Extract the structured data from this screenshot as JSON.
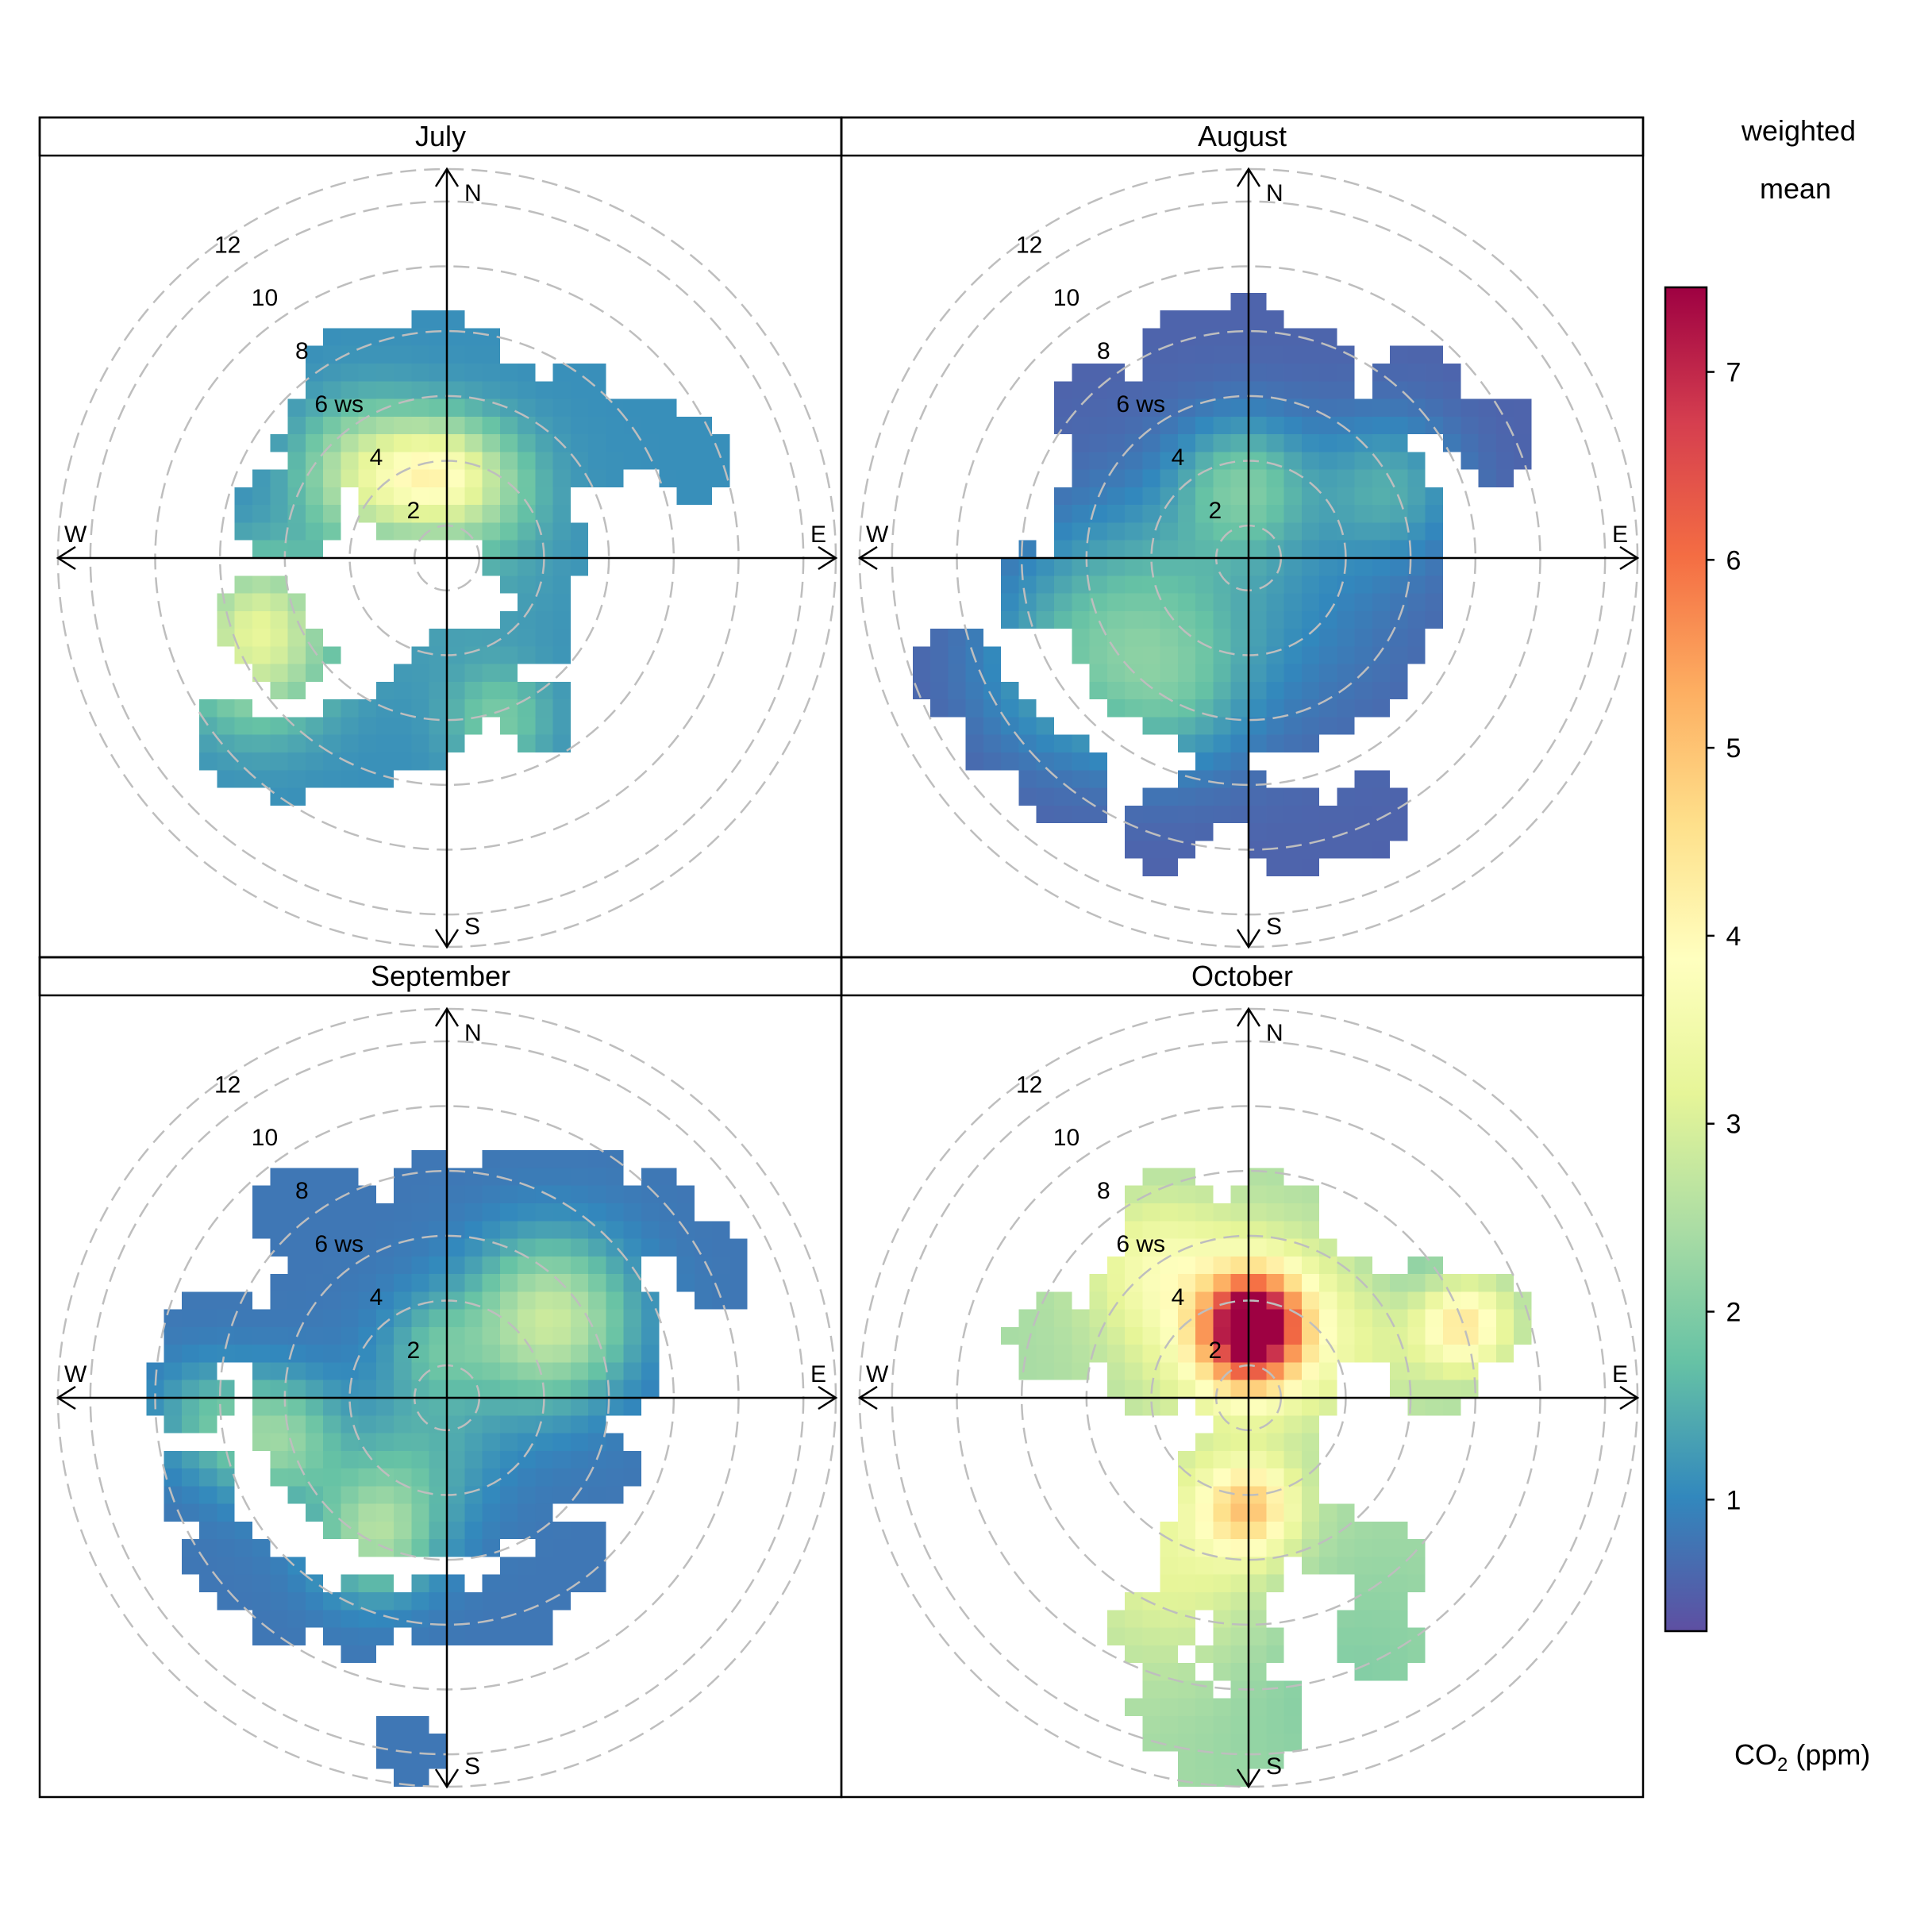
{
  "chart_data": {
    "type": "heatmap",
    "subtype": "polar-plot",
    "layout": "2x2",
    "radial_scale": {
      "label": "ws",
      "ticks": [
        2,
        4,
        6,
        8,
        10,
        12
      ],
      "rmax": 12
    },
    "compass": [
      "N",
      "E",
      "S",
      "W"
    ],
    "colorkey": {
      "title_lines": [
        "weighted",
        "mean"
      ],
      "variable_label": "CO",
      "variable_subscript": "2",
      "variable_unit": " (ppm)",
      "ticks": [
        1,
        2,
        3,
        4,
        5,
        6,
        7
      ],
      "min": 0.3,
      "max": 7.45,
      "palette": [
        "#5E4FA2",
        "#3288BD",
        "#66C2A5",
        "#ABDDA4",
        "#E6F598",
        "#FFFFBF",
        "#FEE08B",
        "#FDAE61",
        "#F46D43",
        "#D53E4F",
        "#9E0142"
      ]
    },
    "panels": [
      {
        "name": "July",
        "background": 1.1,
        "coverage_blobs": [
          {
            "u": -0.5,
            "v": 3.0,
            "r": 2.6
          },
          {
            "u": -0.2,
            "v": 5.2,
            "r": 2.3
          },
          {
            "u": -1.6,
            "v": 5.8,
            "r": 1.4
          },
          {
            "u": -3.2,
            "v": 5.8,
            "r": 1.3
          },
          {
            "u": -3.6,
            "v": 3.6,
            "r": 1.6
          },
          {
            "u": -4.8,
            "v": 1.4,
            "r": 1.6
          },
          {
            "u": -5.8,
            "v": -1.8,
            "r": 1.3
          },
          {
            "u": -4.8,
            "v": -3.0,
            "r": 1.3
          },
          {
            "u": -6.6,
            "v": -5.6,
            "r": 1.3
          },
          {
            "u": -5.0,
            "v": -6.2,
            "r": 1.3
          },
          {
            "u": -3.0,
            "v": -5.8,
            "r": 1.5
          },
          {
            "u": -1.0,
            "v": -5.0,
            "r": 1.5
          },
          {
            "u": 0.5,
            "v": -3.8,
            "r": 1.6
          },
          {
            "u": 2.8,
            "v": -4.8,
            "r": 1.2
          },
          {
            "u": 2.8,
            "v": -2.2,
            "r": 1.2
          },
          {
            "u": 2.8,
            "v": 0.2,
            "r": 1.6
          },
          {
            "u": 2.4,
            "v": 3.0,
            "r": 1.6
          },
          {
            "u": 4.2,
            "v": 3.6,
            "r": 1.6
          },
          {
            "u": 6.0,
            "v": 3.8,
            "r": 1.2
          },
          {
            "u": 7.6,
            "v": 3.0,
            "r": 1.2
          },
          {
            "u": 4.0,
            "v": 4.8,
            "r": 1.2
          },
          {
            "u": 1.8,
            "v": 4.8,
            "r": 1.3
          }
        ],
        "hotspots": [
          {
            "u": -2.4,
            "v": 2.6,
            "r": 1.4,
            "w": 1.8
          },
          {
            "u": -0.4,
            "v": 2.6,
            "r": 1.1,
            "w": 1.7
          },
          {
            "u": 1.0,
            "v": 2.3,
            "r": 1.3,
            "w": 1.0
          },
          {
            "u": -5.8,
            "v": -3.1,
            "r": 1.6,
            "w": 1.4
          },
          {
            "u": -5.8,
            "v": -1.6,
            "r": 1.3,
            "w": 1.0
          },
          {
            "u": 1.6,
            "v": -5.0,
            "r": 1.1,
            "w": 0.8
          },
          {
            "u": 0.0,
            "v": 0.0,
            "r": 2.5,
            "w": 0.3
          }
        ]
      },
      {
        "name": "August",
        "background": 0.55,
        "coverage_blobs": [
          {
            "u": 0.0,
            "v": 0.0,
            "r": 6.2
          },
          {
            "u": -4.6,
            "v": 4.6,
            "r": 1.5
          },
          {
            "u": -1.8,
            "v": 6.2,
            "r": 1.5
          },
          {
            "u": 0.0,
            "v": 6.4,
            "r": 1.6
          },
          {
            "u": 2.0,
            "v": 5.6,
            "r": 1.5
          },
          {
            "u": 5.2,
            "v": 5.0,
            "r": 1.4
          },
          {
            "u": 7.6,
            "v": 3.8,
            "r": 1.4
          },
          {
            "u": -6.6,
            "v": -1.0,
            "r": 1.3
          },
          {
            "u": -9.0,
            "v": -3.6,
            "r": 1.5
          },
          {
            "u": -7.6,
            "v": -5.4,
            "r": 1.4
          },
          {
            "u": -5.6,
            "v": -7.0,
            "r": 1.4
          },
          {
            "u": -2.6,
            "v": -8.4,
            "r": 1.3
          },
          {
            "u": 1.4,
            "v": -8.4,
            "r": 1.3
          },
          {
            "u": 3.6,
            "v": -8.0,
            "r": 1.3
          },
          {
            "u": -0.8,
            "v": -7.0,
            "r": 1.2
          }
        ],
        "hotspots": [
          {
            "u": -3.8,
            "v": -1.8,
            "r": 2.4,
            "w": 0.9
          },
          {
            "u": -2.4,
            "v": -4.2,
            "r": 1.7,
            "w": 0.7
          },
          {
            "u": -6.0,
            "v": -3.6,
            "r": 1.9,
            "w": 0.5
          },
          {
            "u": -0.2,
            "v": 2.3,
            "r": 1.4,
            "w": 1.1
          },
          {
            "u": 4.4,
            "v": 2.2,
            "r": 1.5,
            "w": 0.8
          },
          {
            "u": 0.6,
            "v": -0.8,
            "r": 3.0,
            "w": 0.5
          }
        ]
      },
      {
        "name": "September",
        "background": 0.8,
        "coverage_blobs": [
          {
            "u": -0.6,
            "v": 0.6,
            "r": 5.6
          },
          {
            "u": 2.6,
            "v": 2.4,
            "r": 3.8
          },
          {
            "u": -4.8,
            "v": 5.8,
            "r": 1.3
          },
          {
            "u": -3.2,
            "v": 5.6,
            "r": 1.3
          },
          {
            "u": -0.6,
            "v": 6.2,
            "r": 1.3
          },
          {
            "u": 2.0,
            "v": 6.6,
            "r": 1.3
          },
          {
            "u": 4.2,
            "v": 6.6,
            "r": 1.3
          },
          {
            "u": 6.4,
            "v": 5.6,
            "r": 1.3
          },
          {
            "u": 8.2,
            "v": 4.0,
            "r": 1.3
          },
          {
            "u": 4.8,
            "v": 1.4,
            "r": 2.0
          },
          {
            "u": -7.2,
            "v": 2.2,
            "r": 1.3
          },
          {
            "u": -8.0,
            "v": 0.2,
            "r": 1.3
          },
          {
            "u": -7.6,
            "v": -2.8,
            "r": 1.3
          },
          {
            "u": -6.8,
            "v": -5.0,
            "r": 1.3
          },
          {
            "u": -5.0,
            "v": -6.4,
            "r": 1.3
          },
          {
            "u": -2.6,
            "v": -6.8,
            "r": 1.3
          },
          {
            "u": -0.2,
            "v": -6.6,
            "r": 1.3
          },
          {
            "u": 2.2,
            "v": -6.4,
            "r": 1.3
          },
          {
            "u": 3.8,
            "v": -5.0,
            "r": 1.3
          },
          {
            "u": 4.6,
            "v": -2.2,
            "r": 1.3
          },
          {
            "u": -1.2,
            "v": -10.8,
            "r": 1.1
          }
        ],
        "hotspots": [
          {
            "u": 3.2,
            "v": 2.4,
            "r": 1.7,
            "w": 2.0
          },
          {
            "u": -5.2,
            "v": -1.3,
            "r": 1.3,
            "w": 1.4
          },
          {
            "u": -2.2,
            "v": -4.2,
            "r": 1.3,
            "w": 1.6
          },
          {
            "u": -7.5,
            "v": -0.6,
            "r": 1.2,
            "w": 0.7
          },
          {
            "u": -0.3,
            "v": 1.6,
            "r": 1.1,
            "w": 0.6
          },
          {
            "u": -1.0,
            "v": -2.0,
            "r": 1.5,
            "w": 0.5
          },
          {
            "u": 0.0,
            "v": 0.0,
            "r": 2.0,
            "w": 0.3
          }
        ]
      },
      {
        "name": "October",
        "background": 2.4,
        "coverage_blobs": [
          {
            "u": -1.6,
            "v": 3.0,
            "r": 2.8
          },
          {
            "u": 1.0,
            "v": 2.8,
            "r": 2.6
          },
          {
            "u": -2.4,
            "v": 5.4,
            "r": 1.6
          },
          {
            "u": 0.6,
            "v": 5.4,
            "r": 1.6
          },
          {
            "u": -6.0,
            "v": 1.8,
            "r": 1.4
          },
          {
            "u": -3.6,
            "v": 2.4,
            "r": 1.6
          },
          {
            "u": -3.0,
            "v": 0.4,
            "r": 1.2
          },
          {
            "u": 3.4,
            "v": 2.6,
            "r": 1.6
          },
          {
            "u": 5.4,
            "v": 2.8,
            "r": 1.4
          },
          {
            "u": 7.4,
            "v": 2.6,
            "r": 1.4
          },
          {
            "u": 5.8,
            "v": 0.8,
            "r": 1.3
          },
          {
            "u": 0.6,
            "v": 0.0,
            "r": 2.0
          },
          {
            "u": 0.0,
            "v": -3.0,
            "r": 2.2
          },
          {
            "u": -0.8,
            "v": -5.0,
            "r": 1.9
          },
          {
            "u": 2.4,
            "v": -4.2,
            "r": 1.2
          },
          {
            "u": 4.2,
            "v": -5.2,
            "r": 1.3
          },
          {
            "u": -3.0,
            "v": -7.2,
            "r": 1.3
          },
          {
            "u": -0.2,
            "v": -7.8,
            "r": 1.2
          },
          {
            "u": 4.0,
            "v": -7.6,
            "r": 1.3
          },
          {
            "u": -2.2,
            "v": -9.6,
            "r": 1.4
          },
          {
            "u": 0.4,
            "v": -10.0,
            "r": 1.4
          },
          {
            "u": -1.0,
            "v": -11.0,
            "r": 1.3
          }
        ],
        "hotspots": [
          {
            "u": 0.2,
            "v": 2.5,
            "r": 1.0,
            "w": 3.6
          },
          {
            "u": 0.0,
            "v": 1.4,
            "r": 1.1,
            "w": 2.4
          },
          {
            "u": -1.4,
            "v": 2.8,
            "r": 2.0,
            "w": 1.2
          },
          {
            "u": 0.0,
            "v": -3.4,
            "r": 1.0,
            "w": 2.2
          },
          {
            "u": 6.6,
            "v": 2.3,
            "r": 1.0,
            "w": 2.1
          },
          {
            "u": 2.6,
            "v": 2.0,
            "r": 2.0,
            "w": 0.9
          },
          {
            "u": -2.0,
            "v": -5.0,
            "r": 2.4,
            "w": 0.9
          },
          {
            "u": -3.2,
            "v": 4.4,
            "r": 1.4,
            "w": 0.6
          },
          {
            "u": 5.4,
            "v": 4.2,
            "r": 1.5,
            "w": -0.6
          },
          {
            "u": 2.5,
            "v": -8.5,
            "r": 3.0,
            "w": -0.4
          }
        ]
      }
    ]
  }
}
